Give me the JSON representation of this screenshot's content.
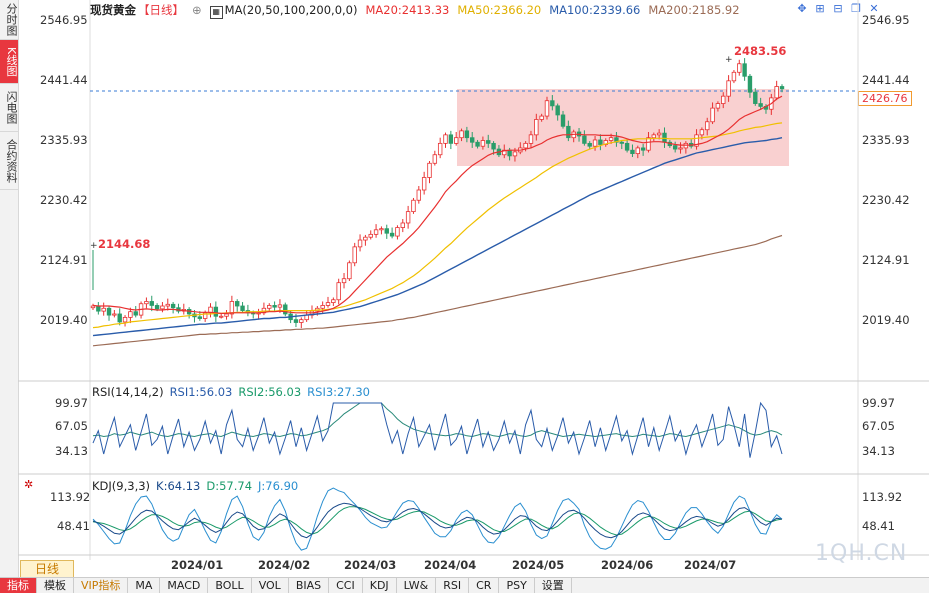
{
  "sidebar": {
    "tabs": [
      "分时图",
      "K线图",
      "闪电图",
      "合约资料"
    ],
    "active": 1
  },
  "header": {
    "title": "现货黄金",
    "period_tag": "【日线】",
    "ma_label": "MA(20,50,100,200,0,0)",
    "ma20": "MA20:2413.33",
    "ma50": "MA50:2366.20",
    "ma100": "MA100:2339.66",
    "ma200": "MA200:2185.92"
  },
  "colors": {
    "ma20": "#e83030",
    "ma50": "#f0c000",
    "ma100": "#2a5caa",
    "ma200": "#9b6b55",
    "up": "#e83030",
    "down": "#2a9d6a",
    "zone": "#f8c8c8"
  },
  "tools": [
    "crosshair-icon",
    "zoom-in-icon",
    "zoom-out-icon",
    "restore-icon",
    "close-icon"
  ],
  "price_axis": {
    "ticks": [
      "2546.95",
      "2441.44",
      "2335.93",
      "2230.42",
      "2124.91",
      "2019.40"
    ],
    "current": "2426.76"
  },
  "annotations": {
    "high": "2483.56",
    "low": "2144.68"
  },
  "rsi": {
    "label": "RSI(14,14,2)",
    "rsi1": "RSI1:56.03",
    "rsi2": "RSI2:56.03",
    "rsi3": "RSI3:27.30",
    "ticks": [
      "99.97",
      "67.05",
      "34.13"
    ]
  },
  "kdj": {
    "label": "KDJ(9,3,3)",
    "k": "K:64.13",
    "d": "D:57.74",
    "j": "J:76.90",
    "ticks": [
      "113.92",
      "48.41"
    ]
  },
  "x_axis": {
    "labels": [
      "2024/01",
      "2024/02",
      "2024/03",
      "2024/04",
      "2024/05",
      "2024/06",
      "2024/07"
    ]
  },
  "period_button": "日线",
  "bottom_tabs": [
    "指标",
    "模板",
    "VIP指标",
    "MA",
    "MACD",
    "BOLL",
    "VOL",
    "BIAS",
    "CCI",
    "KDJ",
    "LW&",
    "RSI",
    "CR",
    "PSY",
    "设置"
  ],
  "watermark": "1QH.CN",
  "chart_data": {
    "type": "candlestick",
    "title": "现货黄金 日线",
    "ylim": [
      1980,
      2550
    ],
    "closes": [
      2044,
      2035,
      2040,
      2028,
      2030,
      2016,
      2024,
      2034,
      2028,
      2048,
      2052,
      2045,
      2039,
      2044,
      2047,
      2041,
      2035,
      2038,
      2030,
      2025,
      2022,
      2032,
      2042,
      2026,
      2026,
      2030,
      2052,
      2044,
      2036,
      2032,
      2030,
      2032,
      2040,
      2045,
      2042,
      2046,
      2030,
      2020,
      2015,
      2020,
      2028,
      2035,
      2040,
      2045,
      2050,
      2055,
      2085,
      2092,
      2120,
      2148,
      2160,
      2165,
      2170,
      2178,
      2180,
      2172,
      2167,
      2182,
      2190,
      2210,
      2230,
      2248,
      2270,
      2295,
      2310,
      2330,
      2345,
      2330,
      2340,
      2352,
      2340,
      2332,
      2325,
      2335,
      2330,
      2320,
      2310,
      2318,
      2308,
      2315,
      2322,
      2330,
      2345,
      2372,
      2378,
      2405,
      2396,
      2380,
      2360,
      2340,
      2350,
      2343,
      2330,
      2325,
      2336,
      2328,
      2335,
      2340,
      2332,
      2330,
      2318,
      2312,
      2322,
      2318,
      2340,
      2345,
      2348,
      2332,
      2326,
      2320,
      2322,
      2330,
      2325,
      2345,
      2354,
      2368,
      2392,
      2400,
      2413,
      2440,
      2455,
      2470,
      2448,
      2420,
      2400,
      2395,
      2390,
      2410,
      2430,
      2426
    ],
    "ma20": [
      2045,
      2044,
      2044,
      2044,
      2043,
      2042,
      2040,
      2038,
      2037,
      2038,
      2039,
      2038,
      2037,
      2037,
      2038,
      2038,
      2037,
      2036,
      2035,
      2034,
      2033,
      2033,
      2033,
      2032,
      2031,
      2031,
      2032,
      2032,
      2032,
      2032,
      2032,
      2032,
      2033,
      2034,
      2034,
      2035,
      2034,
      2033,
      2032,
      2032,
      2032,
      2032,
      2033,
      2035,
      2037,
      2040,
      2045,
      2052,
      2060,
      2070,
      2080,
      2090,
      2100,
      2110,
      2120,
      2130,
      2138,
      2146,
      2154,
      2163,
      2172,
      2182,
      2194,
      2206,
      2218,
      2231,
      2245,
      2255,
      2264,
      2274,
      2283,
      2291,
      2297,
      2303,
      2309,
      2313,
      2315,
      2317,
      2318,
      2318,
      2318,
      2320,
      2322,
      2326,
      2330,
      2336,
      2340,
      2343,
      2345,
      2345,
      2346,
      2346,
      2345,
      2345,
      2345,
      2344,
      2344,
      2344,
      2343,
      2341,
      2338,
      2335,
      2333,
      2331,
      2332,
      2333,
      2333,
      2332,
      2330,
      2328,
      2327,
      2327,
      2327,
      2328,
      2330,
      2333,
      2338,
      2343,
      2348,
      2355,
      2363,
      2372,
      2378,
      2382,
      2386,
      2390,
      2395,
      2400,
      2408,
      2413
    ],
    "ma50": [
      2006,
      2007,
      2009,
      2010,
      2012,
      2013,
      2014,
      2016,
      2017,
      2018,
      2019,
      2020,
      2021,
      2022,
      2023,
      2024,
      2025,
      2026,
      2027,
      2028,
      2029,
      2030,
      2030,
      2031,
      2031,
      2032,
      2032,
      2033,
      2033,
      2034,
      2034,
      2034,
      2035,
      2035,
      2035,
      2036,
      2036,
      2036,
      2036,
      2036,
      2036,
      2036,
      2037,
      2037,
      2038,
      2039,
      2041,
      2043,
      2046,
      2049,
      2052,
      2055,
      2059,
      2063,
      2067,
      2071,
      2075,
      2080,
      2085,
      2091,
      2097,
      2104,
      2112,
      2120,
      2128,
      2137,
      2146,
      2154,
      2163,
      2172,
      2181,
      2189,
      2197,
      2205,
      2213,
      2220,
      2227,
      2234,
      2240,
      2246,
      2252,
      2258,
      2264,
      2270,
      2277,
      2283,
      2289,
      2294,
      2299,
      2304,
      2308,
      2312,
      2316,
      2320,
      2323,
      2326,
      2329,
      2331,
      2333,
      2335,
      2336,
      2337,
      2338,
      2338,
      2338,
      2339,
      2339,
      2339,
      2338,
      2338,
      2338,
      2338,
      2338,
      2339,
      2340,
      2341,
      2342,
      2343,
      2345,
      2347,
      2349,
      2352,
      2354,
      2356,
      2358,
      2359,
      2361,
      2363,
      2365,
      2366
    ],
    "ma100": [
      1992,
      1993,
      1994,
      1995,
      1996,
      1997,
      1998,
      1999,
      2000,
      2001,
      2002,
      2003,
      2004,
      2005,
      2006,
      2007,
      2008,
      2009,
      2010,
      2011,
      2012,
      2012,
      2013,
      2014,
      2014,
      2015,
      2016,
      2017,
      2018,
      2019,
      2020,
      2021,
      2022,
      2022,
      2023,
      2024,
      2024,
      2025,
      2026,
      2027,
      2028,
      2029,
      2030,
      2031,
      2032,
      2033,
      2035,
      2037,
      2039,
      2041,
      2043,
      2046,
      2049,
      2052,
      2055,
      2058,
      2061,
      2064,
      2068,
      2072,
      2076,
      2080,
      2084,
      2089,
      2094,
      2099,
      2104,
      2109,
      2114,
      2119,
      2124,
      2129,
      2134,
      2139,
      2144,
      2149,
      2154,
      2159,
      2164,
      2169,
      2174,
      2179,
      2184,
      2189,
      2194,
      2199,
      2204,
      2209,
      2214,
      2219,
      2224,
      2229,
      2234,
      2239,
      2243,
      2247,
      2251,
      2255,
      2259,
      2263,
      2267,
      2271,
      2275,
      2279,
      2283,
      2287,
      2291,
      2295,
      2298,
      2301,
      2304,
      2307,
      2310,
      2313,
      2315,
      2317,
      2319,
      2321,
      2323,
      2325,
      2327,
      2329,
      2331,
      2332,
      2333,
      2334,
      2335,
      2337,
      2338,
      2340
    ],
    "ma200": [
      1974,
      1975,
      1976,
      1977,
      1978,
      1979,
      1980,
      1981,
      1982,
      1983,
      1984,
      1985,
      1986,
      1987,
      1988,
      1989,
      1990,
      1991,
      1992,
      1993,
      1994,
      1994,
      1995,
      1995,
      1996,
      1996,
      1997,
      1997,
      1998,
      1998,
      1999,
      1999,
      2000,
      2000,
      2001,
      2001,
      2002,
      2002,
      2003,
      2003,
      2004,
      2004,
      2005,
      2005,
      2006,
      2007,
      2008,
      2009,
      2010,
      2011,
      2012,
      2013,
      2014,
      2015,
      2016,
      2017,
      2018,
      2020,
      2021,
      2023,
      2024,
      2026,
      2028,
      2030,
      2032,
      2034,
      2036,
      2038,
      2040,
      2042,
      2044,
      2046,
      2048,
      2050,
      2052,
      2054,
      2056,
      2058,
      2060,
      2062,
      2064,
      2066,
      2068,
      2070,
      2072,
      2074,
      2076,
      2078,
      2080,
      2082,
      2084,
      2086,
      2088,
      2090,
      2092,
      2094,
      2096,
      2098,
      2100,
      2102,
      2104,
      2106,
      2108,
      2110,
      2112,
      2114,
      2116,
      2118,
      2120,
      2122,
      2124,
      2126,
      2128,
      2130,
      2132,
      2134,
      2136,
      2138,
      2140,
      2142,
      2144,
      2146,
      2148,
      2150,
      2152,
      2155,
      2158,
      2162,
      2165,
      2168
    ],
    "rsi1": [
      45,
      62,
      30,
      58,
      80,
      40,
      55,
      70,
      35,
      60,
      85,
      42,
      50,
      68,
      30,
      55,
      78,
      40,
      60,
      35,
      50,
      75,
      45,
      62,
      30,
      70,
      90,
      50,
      40,
      65,
      35,
      55,
      80,
      45,
      60,
      30,
      52,
      76,
      40,
      66,
      35,
      58,
      82,
      48,
      62,
      100,
      100,
      100,
      100,
      100,
      100,
      100,
      100,
      100,
      100,
      70,
      45,
      62,
      30,
      58,
      80,
      40,
      55,
      70,
      35,
      60,
      85,
      42,
      50,
      68,
      30,
      55,
      78,
      40,
      60,
      35,
      50,
      75,
      45,
      62,
      30,
      70,
      90,
      50,
      40,
      65,
      35,
      55,
      80,
      45,
      60,
      30,
      52,
      76,
      40,
      66,
      35,
      58,
      82,
      48,
      62,
      30,
      55,
      80,
      40,
      66,
      35,
      58,
      82,
      48,
      62,
      30,
      55,
      70,
      40,
      60,
      85,
      42,
      50,
      95,
      70,
      40,
      85,
      25,
      60,
      100,
      90,
      40,
      55,
      30
    ],
    "rsi2": [
      55,
      56,
      54,
      55,
      58,
      56,
      57,
      60,
      58,
      56,
      58,
      60,
      57,
      55,
      54,
      56,
      58,
      57,
      55,
      54,
      56,
      57,
      58,
      55,
      54,
      57,
      60,
      58,
      56,
      55,
      54,
      56,
      58,
      57,
      55,
      54,
      56,
      58,
      57,
      55,
      56,
      58,
      60,
      62,
      65,
      72,
      78,
      85,
      90,
      95,
      100,
      100,
      100,
      100,
      100,
      92,
      86,
      78,
      72,
      68,
      64,
      62,
      60,
      58,
      57,
      56,
      55,
      56,
      58,
      57,
      55,
      54,
      56,
      58,
      57,
      55,
      54,
      56,
      58,
      57,
      55,
      54,
      56,
      60,
      62,
      60,
      58,
      56,
      54,
      55,
      56,
      57,
      56,
      55,
      54,
      55,
      56,
      57,
      58,
      56,
      55,
      54,
      55,
      57,
      56,
      55,
      54,
      56,
      58,
      57,
      55,
      54,
      56,
      58,
      60,
      62,
      64,
      66,
      68,
      70,
      68,
      66,
      62,
      58,
      56,
      57,
      60,
      62,
      60,
      56
    ],
    "k": [
      60,
      55,
      48,
      40,
      32,
      30,
      38,
      52,
      66,
      78,
      84,
      82,
      72,
      60,
      50,
      42,
      40,
      48,
      58,
      66,
      60,
      50,
      40,
      34,
      40,
      56,
      72,
      80,
      76,
      62,
      48,
      40,
      42,
      54,
      66,
      76,
      70,
      54,
      38,
      26,
      22,
      30,
      46,
      64,
      80,
      90,
      96,
      100,
      98,
      94,
      88,
      80,
      72,
      66,
      60,
      58,
      62,
      70,
      80,
      86,
      88,
      84,
      76,
      66,
      56,
      48,
      44,
      46,
      54,
      62,
      68,
      66,
      58,
      46,
      36,
      30,
      32,
      40,
      52,
      64,
      72,
      70,
      60,
      48,
      40,
      38,
      46,
      60,
      74,
      82,
      84,
      78,
      66,
      52,
      40,
      30,
      24,
      22,
      26,
      36,
      50,
      64,
      74,
      78,
      74,
      64,
      52,
      42,
      38,
      40,
      48,
      58,
      66,
      70,
      68,
      62,
      54,
      48,
      52,
      64,
      78,
      88,
      90,
      82,
      68,
      56,
      50,
      58,
      66,
      64
    ],
    "d": [
      58,
      56,
      54,
      50,
      45,
      40,
      38,
      42,
      50,
      60,
      68,
      74,
      74,
      70,
      64,
      56,
      50,
      48,
      50,
      56,
      58,
      56,
      52,
      46,
      42,
      46,
      54,
      62,
      68,
      66,
      60,
      52,
      46,
      46,
      52,
      60,
      64,
      60,
      52,
      42,
      34,
      30,
      34,
      44,
      56,
      68,
      80,
      88,
      92,
      92,
      90,
      86,
      80,
      74,
      68,
      64,
      62,
      64,
      70,
      76,
      80,
      82,
      80,
      74,
      68,
      60,
      54,
      50,
      50,
      54,
      60,
      62,
      62,
      56,
      48,
      40,
      36,
      36,
      42,
      50,
      58,
      64,
      64,
      58,
      50,
      44,
      42,
      48,
      58,
      68,
      76,
      78,
      74,
      66,
      56,
      46,
      38,
      32,
      28,
      30,
      38,
      48,
      58,
      66,
      70,
      68,
      62,
      54,
      48,
      44,
      44,
      48,
      54,
      60,
      64,
      64,
      60,
      56,
      54,
      58,
      66,
      74,
      80,
      82,
      76,
      68,
      60,
      58,
      62,
      64
    ],
    "j": [
      64,
      52,
      36,
      20,
      8,
      10,
      38,
      72,
      98,
      114,
      116,
      98,
      68,
      40,
      22,
      14,
      20,
      48,
      74,
      86,
      64,
      38,
      16,
      10,
      36,
      76,
      108,
      116,
      92,
      54,
      24,
      16,
      34,
      70,
      94,
      108,
      82,
      42,
      10,
      -6,
      -2,
      30,
      70,
      104,
      128,
      134,
      128,
      124,
      110,
      98,
      84,
      68,
      56,
      50,
      44,
      46,
      62,
      82,
      100,
      106,
      104,
      88,
      68,
      50,
      32,
      24,
      24,
      38,
      62,
      78,
      84,
      74,
      50,
      26,
      12,
      10,
      24,
      48,
      72,
      92,
      100,
      82,
      52,
      28,
      20,
      26,
      54,
      84,
      106,
      110,
      100,
      86,
      50,
      24,
      8,
      -2,
      -4,
      2,
      22,
      48,
      74,
      96,
      106,
      102,
      82,
      56,
      32,
      18,
      18,
      32,
      56,
      78,
      90,
      90,
      76,
      58,
      42,
      32,
      48,
      76,
      102,
      116,
      110,
      82,
      52,
      32,
      30,
      58,
      74,
      64
    ]
  }
}
